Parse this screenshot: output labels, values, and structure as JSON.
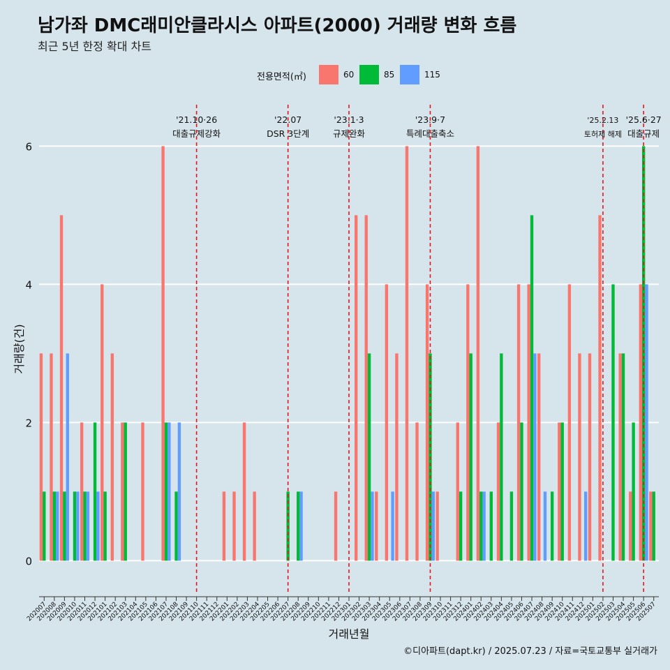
{
  "title": "남가좌 DMC래미안클라시스 아파트(2000) 거래량 변화 흐름",
  "subtitle": "최근 5년 한정 확대 차트",
  "legend": {
    "title": "전용면적(㎡)",
    "items": [
      {
        "label": "60",
        "color": "#f8766d"
      },
      {
        "label": "85",
        "color": "#00ba38"
      },
      {
        "label": "115",
        "color": "#619cff"
      }
    ]
  },
  "footer": "©디아파트(dapt.kr) / 2025.07.23 / 자료=국토교통부 실거래가",
  "chart_data": {
    "type": "bar",
    "title": "남가좌 DMC래미안클라시스 아파트(2000) 거래량 변화 흐름",
    "subtitle": "최근 5년 한정 확대 차트",
    "xlabel": "거래년월",
    "ylabel": "거래량(건)",
    "ylim": [
      -0.4,
      6.6
    ],
    "yticks": [
      0,
      2,
      4,
      6
    ],
    "grid": "horizontal",
    "legend_position": "top",
    "categories": [
      "202007",
      "202008",
      "202009",
      "202010",
      "202011",
      "202012",
      "202101",
      "202102",
      "202103",
      "202104",
      "202105",
      "202106",
      "202107",
      "202108",
      "202109",
      "202110",
      "202111",
      "202112",
      "202201",
      "202202",
      "202203",
      "202204",
      "202205",
      "202206",
      "202207",
      "202208",
      "202209",
      "202210",
      "202211",
      "202212",
      "202301",
      "202302",
      "202303",
      "202304",
      "202305",
      "202306",
      "202307",
      "202308",
      "202309",
      "202310",
      "202311",
      "202312",
      "202401",
      "202402",
      "202403",
      "202404",
      "202405",
      "202406",
      "202407",
      "202408",
      "202409",
      "202410",
      "202411",
      "202412",
      "202501",
      "202502",
      "202503",
      "202504",
      "202505",
      "202506",
      "202507"
    ],
    "series": [
      {
        "name": "60",
        "color": "#f8766d",
        "values": [
          3,
          3,
          5,
          null,
          2,
          null,
          4,
          3,
          2,
          null,
          2,
          null,
          6,
          null,
          null,
          null,
          null,
          null,
          1,
          1,
          2,
          1,
          null,
          null,
          null,
          null,
          null,
          null,
          null,
          1,
          null,
          5,
          5,
          1,
          4,
          3,
          6,
          2,
          4,
          1,
          null,
          2,
          4,
          6,
          null,
          2,
          null,
          4,
          4,
          3,
          null,
          2,
          4,
          3,
          3,
          5,
          null,
          3,
          1,
          4,
          1
        ]
      },
      {
        "name": "85",
        "color": "#00ba38",
        "values": [
          1,
          1,
          1,
          1,
          1,
          2,
          1,
          null,
          2,
          null,
          null,
          null,
          2,
          1,
          null,
          null,
          null,
          null,
          null,
          null,
          null,
          null,
          null,
          null,
          1,
          1,
          null,
          null,
          null,
          null,
          null,
          null,
          3,
          null,
          null,
          null,
          null,
          null,
          3,
          null,
          null,
          1,
          3,
          1,
          1,
          3,
          1,
          2,
          5,
          null,
          1,
          2,
          null,
          null,
          null,
          null,
          4,
          3,
          2,
          6,
          1
        ]
      },
      {
        "name": "115",
        "color": "#619cff",
        "values": [
          null,
          1,
          3,
          1,
          1,
          1,
          null,
          null,
          null,
          null,
          null,
          null,
          2,
          2,
          null,
          null,
          null,
          null,
          null,
          null,
          null,
          null,
          null,
          null,
          null,
          1,
          null,
          null,
          null,
          null,
          null,
          null,
          1,
          null,
          1,
          null,
          null,
          null,
          1,
          null,
          null,
          null,
          null,
          1,
          null,
          null,
          null,
          null,
          3,
          1,
          null,
          null,
          null,
          1,
          null,
          null,
          null,
          null,
          null,
          4,
          null
        ]
      }
    ],
    "events": [
      {
        "category": "202110",
        "date": "'21.10·26",
        "label": "대출규제강화"
      },
      {
        "category": "202207",
        "date": "'22.07",
        "label": "DSR 3단계"
      },
      {
        "category": "202301",
        "date": "'23.1·3",
        "label": "규제완화"
      },
      {
        "category": "202309",
        "date": "'23.9·7",
        "label": "특례대출축소"
      },
      {
        "category": "202502",
        "date": "'25.2.13",
        "label": "토허제 해제"
      },
      {
        "category": "202506",
        "date": "'25.6·27",
        "label": "대출규제"
      }
    ]
  }
}
